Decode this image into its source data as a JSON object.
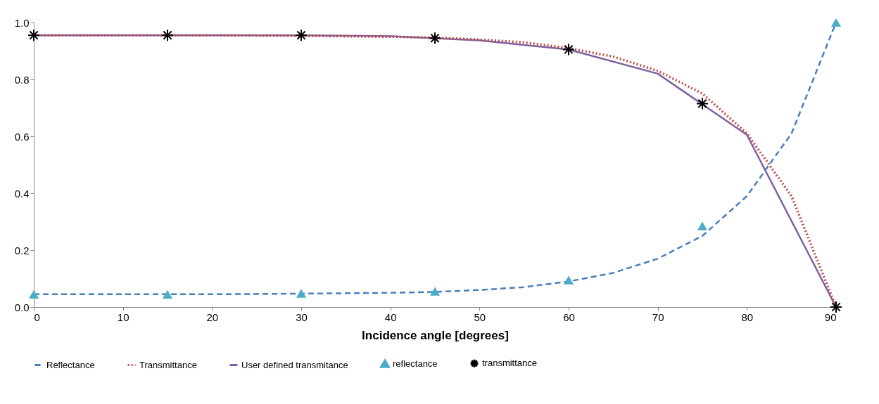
{
  "chart_data": {
    "type": "line",
    "xlabel": "Incidence angle [degrees]",
    "xlim": [
      0,
      90
    ],
    "xticks": [
      0,
      10,
      20,
      30,
      40,
      50,
      60,
      70,
      80,
      90
    ],
    "ylim": [
      0,
      1
    ],
    "yticks": [
      {
        "value": 0,
        "label": "0.0"
      },
      0.2,
      0.4,
      0.6,
      0.8,
      {
        "value": 1,
        "label": "1.0"
      }
    ],
    "grid": false,
    "legend": "bottom",
    "series": [
      {
        "name": "Reflectance",
        "line_style": "dashed",
        "marker": "none",
        "color": "#4a7ebb",
        "x": [
          0,
          10,
          20,
          30,
          40,
          45,
          50,
          55,
          60,
          65,
          70,
          75,
          80,
          85,
          90
        ],
        "values": [
          0.045,
          0.045,
          0.045,
          0.047,
          0.05,
          0.053,
          0.06,
          0.07,
          0.09,
          0.12,
          0.17,
          0.25,
          0.39,
          0.61,
          1.0
        ]
      },
      {
        "name": "Transmittance",
        "line_style": "dotted",
        "marker": "none",
        "color": "#be4b48",
        "x": [
          0,
          10,
          20,
          30,
          40,
          45,
          50,
          55,
          60,
          65,
          70,
          75,
          80,
          85,
          90
        ],
        "values": [
          0.955,
          0.955,
          0.955,
          0.953,
          0.95,
          0.947,
          0.94,
          0.93,
          0.91,
          0.88,
          0.83,
          0.75,
          0.61,
          0.39,
          0.0
        ]
      },
      {
        "name": "User defined transmitance",
        "line_style": "solid",
        "marker": "none",
        "color": "#7d60a0",
        "x": [
          0,
          10,
          20,
          30,
          40,
          50,
          60,
          70,
          80,
          90
        ],
        "values": [
          0.955,
          0.955,
          0.955,
          0.955,
          0.952,
          0.937,
          0.905,
          0.82,
          0.605,
          0.0
        ]
      },
      {
        "name": "reflectance",
        "type": "scatter",
        "marker": "triangle",
        "color": "#4bacc6",
        "x": [
          0,
          15,
          30,
          45,
          60,
          75,
          90
        ],
        "values": [
          0.045,
          0.045,
          0.048,
          0.055,
          0.095,
          0.285,
          1.0
        ]
      },
      {
        "name": "transmittance",
        "type": "scatter",
        "marker": "cross",
        "color": "#000000",
        "x": [
          0,
          15,
          30,
          45,
          60,
          75,
          90
        ],
        "values": [
          0.955,
          0.955,
          0.955,
          0.945,
          0.905,
          0.715,
          0.0
        ]
      }
    ]
  }
}
